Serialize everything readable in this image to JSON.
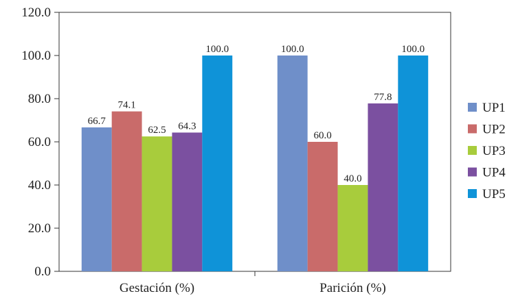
{
  "chart_data": {
    "type": "bar",
    "categories": [
      "Gestación (%)",
      "Parición (%)"
    ],
    "series": [
      {
        "name": "UP1",
        "values": [
          66.7,
          100.0
        ],
        "color": "#6f8fc9"
      },
      {
        "name": "UP2",
        "values": [
          74.1,
          60.0
        ],
        "color": "#c96b6a"
      },
      {
        "name": "UP3",
        "values": [
          62.5,
          40.0
        ],
        "color": "#a8cc3c"
      },
      {
        "name": "UP4",
        "values": [
          64.3,
          77.8
        ],
        "color": "#7b50a0"
      },
      {
        "name": "UP5",
        "values": [
          100.0,
          100.0
        ],
        "color": "#0f93d8"
      }
    ],
    "ylim": [
      0,
      120
    ],
    "yticks": [
      "0.0",
      "20.0",
      "40.0",
      "60.0",
      "80.0",
      "100.0",
      "120.0"
    ],
    "grid": false,
    "legend_position": "right"
  }
}
